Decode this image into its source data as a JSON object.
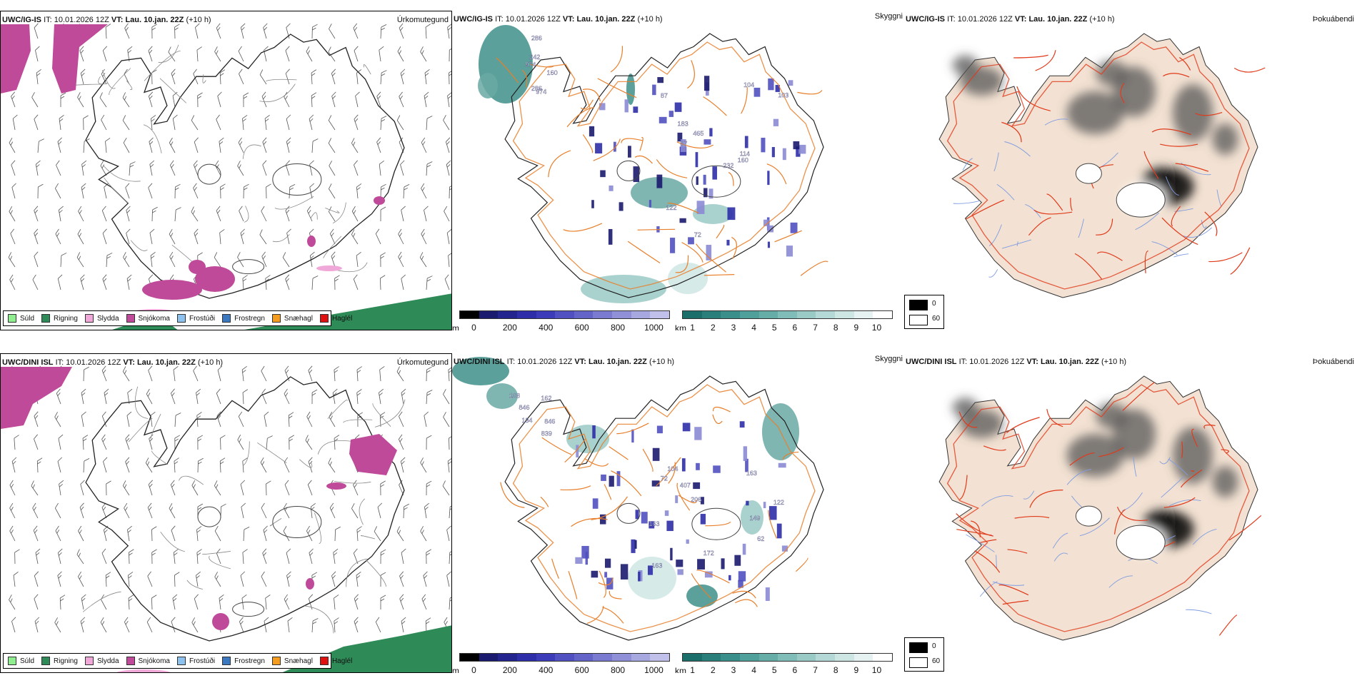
{
  "rows": [
    {
      "model": "UWC/IG-IS",
      "it_label": "IT:",
      "it_value": "10.01.2026 12Z",
      "vt_label": "VT:",
      "vt_value": "Lau. 10.jan. 22Z",
      "lead": "(+10 h)"
    },
    {
      "model": "UWC/DINI ISL",
      "it_label": "IT:",
      "it_value": "10.01.2026 12Z",
      "vt_label": "VT:",
      "vt_value": "Lau. 10.jan. 22Z",
      "lead": "(+10 h)"
    }
  ],
  "panel_titles": {
    "precip": "Úrkomutegund",
    "visibility": "Skyggni",
    "fog": "Þokuábendi"
  },
  "precip_legend": [
    {
      "label": "Súld",
      "color": "#90ee90"
    },
    {
      "label": "Rigning",
      "color": "#2e8b57"
    },
    {
      "label": "Slydda",
      "color": "#f0a8d8"
    },
    {
      "label": "Snjókoma",
      "color": "#c04a9a"
    },
    {
      "label": "Frostúði",
      "color": "#8ec2ee"
    },
    {
      "label": "Frostregn",
      "color": "#3b78c0"
    },
    {
      "label": "Snæhagl",
      "color": "#f39c1f"
    },
    {
      "label": "Haglél",
      "color": "#e01010"
    }
  ],
  "ceiling_bar": {
    "unit": "m",
    "ticks": [
      "0",
      "200",
      "400",
      "600",
      "800",
      "1000"
    ],
    "colors": [
      "#000000",
      "#1a1a6e",
      "#24248e",
      "#2e2ea8",
      "#3c3cb8",
      "#5050c0",
      "#6464c8",
      "#7a7ad0",
      "#9090d8",
      "#a8a8e0",
      "#c0c0ea"
    ]
  },
  "visibility_bar": {
    "unit": "km",
    "ticks": [
      "1",
      "2",
      "3",
      "4",
      "5",
      "6",
      "7",
      "8",
      "9",
      "10"
    ],
    "colors": [
      "#1b6e6a",
      "#2a7f7a",
      "#3b8f8a",
      "#4f9f9a",
      "#66ada8",
      "#80bcb8",
      "#9acac6",
      "#b4d8d5",
      "#cde5e3",
      "#e6f2f1",
      "#ffffff"
    ]
  },
  "fog_legend": {
    "black_label": "0",
    "white_label": "60"
  },
  "labels_top": [
    "974",
    "974",
    "286",
    "242",
    "286",
    "160",
    "232",
    "114",
    "104",
    "122",
    "87",
    "87",
    "160",
    "183",
    "103",
    "72",
    "465"
  ],
  "labels_bottom": [
    "839",
    "846",
    "846",
    "108",
    "134",
    "162",
    "163",
    "407",
    "206",
    "104",
    "172",
    "122",
    "149",
    "72",
    "62",
    "163",
    "163"
  ],
  "colors": {
    "snow": "#c04a9a",
    "sleet": "#f0a8d8",
    "rain": "#2e8b57",
    "road": "#e87f2b",
    "land_fog": "#f3e2d3",
    "fog_road": "#e03a1a",
    "river": "#7f9ce0",
    "coast": "#222222"
  }
}
